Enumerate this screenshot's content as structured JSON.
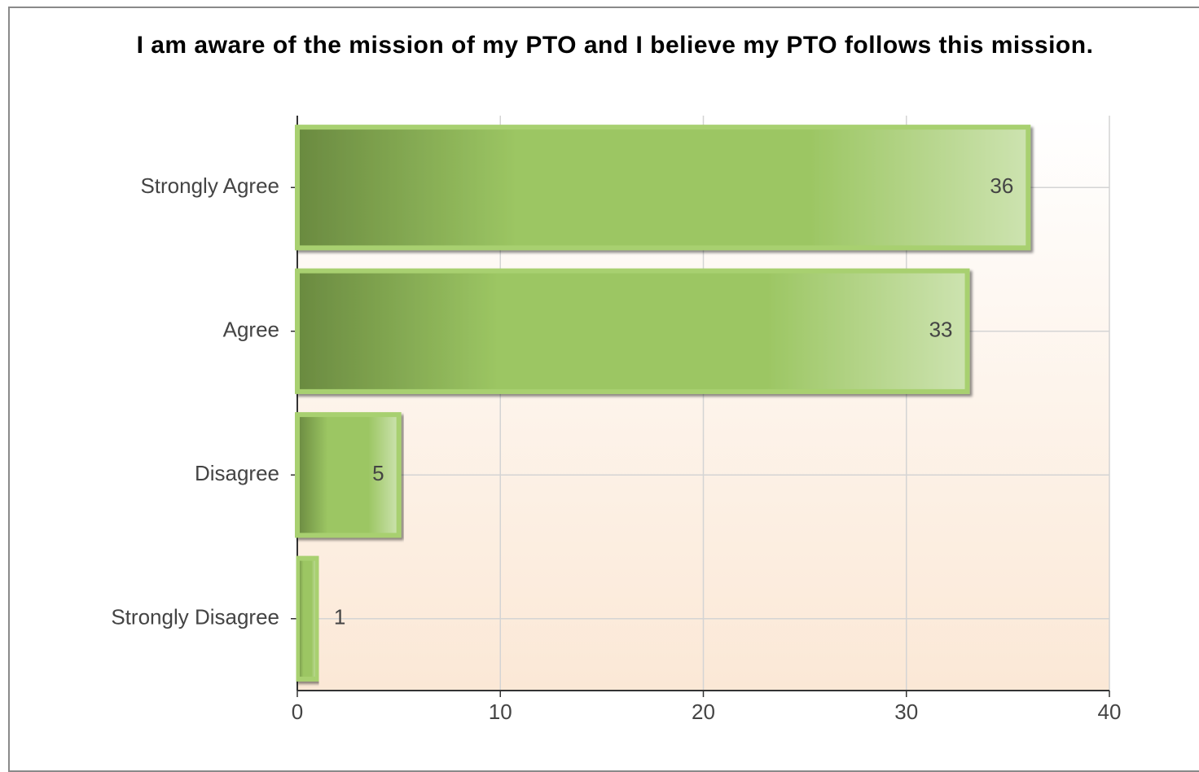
{
  "chart_data": {
    "type": "bar",
    "orientation": "horizontal",
    "title": "I am aware of the mission of my PTO and I believe my PTO follows this mission.",
    "categories": [
      "Strongly Agree",
      "Agree",
      "Disagree",
      "Strongly Disagree"
    ],
    "values": [
      36,
      33,
      5,
      1
    ],
    "color": "#9dc860",
    "xlim": [
      0,
      40
    ],
    "xticks": [
      0,
      10,
      20,
      30,
      40
    ],
    "grid": true
  }
}
